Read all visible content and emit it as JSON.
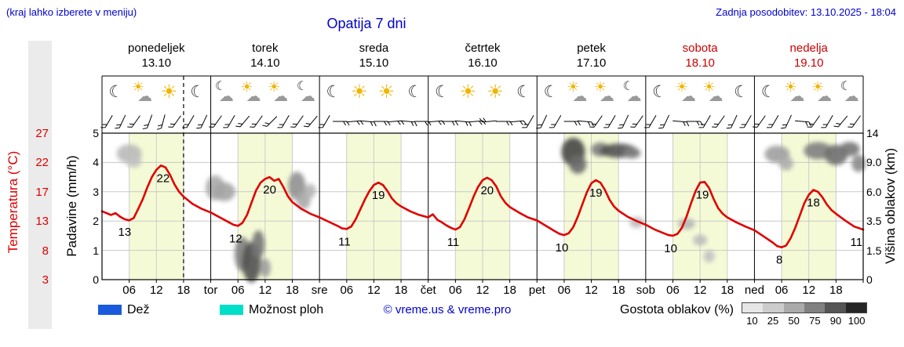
{
  "header": {
    "hint": "(kraj lahko izberete v meniju)",
    "title": "Opatija 7 dni",
    "last_update": "Zadnja posodobitev: 13.10.2025 - 18:04"
  },
  "colors": {
    "accent_blue": "#0000cc",
    "temp_red": "#e00000",
    "weekend_red": "#cc0000",
    "day_band": "#f5fad6",
    "rain_blue": "#1a5adc",
    "showers_cyan": "#00dfc8"
  },
  "days": [
    {
      "name": "ponedeljek",
      "date": "13.10",
      "weekend": false
    },
    {
      "name": "torek",
      "date": "14.10",
      "weekend": false
    },
    {
      "name": "sreda",
      "date": "15.10",
      "weekend": false
    },
    {
      "name": "četrtek",
      "date": "16.10",
      "weekend": false
    },
    {
      "name": "petek",
      "date": "17.10",
      "weekend": false
    },
    {
      "name": "sobota",
      "date": "18.10",
      "weekend": true
    },
    {
      "name": "nedelja",
      "date": "19.10",
      "weekend": true
    }
  ],
  "chart_data": {
    "type": "line",
    "title": "Opatija 7 dni",
    "x_range_hours": [
      0,
      168
    ],
    "temp_axis": {
      "label": "Temperatura (°C)",
      "ticks": [
        27,
        22,
        17,
        13,
        8,
        3
      ],
      "range": [
        3,
        27
      ]
    },
    "precip_axis": {
      "label": "Padavine (mm/h)",
      "ticks": [
        5,
        4,
        3,
        2,
        1,
        0
      ],
      "range": [
        0,
        5
      ]
    },
    "cloud_axis": {
      "label": "Višina oblakov (km)",
      "ticks": [
        "14",
        "9.0",
        "6.0",
        "3.5",
        "1.5",
        "0"
      ],
      "tick_km": [
        14,
        9,
        6,
        3.5,
        1.5,
        0
      ]
    },
    "x_ticks": [
      {
        "h": 6,
        "label": "06"
      },
      {
        "h": 12,
        "label": "12"
      },
      {
        "h": 18,
        "label": "18"
      },
      {
        "h": 24,
        "label": "tor"
      },
      {
        "h": 30,
        "label": "06"
      },
      {
        "h": 36,
        "label": "12"
      },
      {
        "h": 42,
        "label": "18"
      },
      {
        "h": 48,
        "label": "sre"
      },
      {
        "h": 54,
        "label": "06"
      },
      {
        "h": 60,
        "label": "12"
      },
      {
        "h": 66,
        "label": "18"
      },
      {
        "h": 72,
        "label": "čet"
      },
      {
        "h": 78,
        "label": "06"
      },
      {
        "h": 84,
        "label": "12"
      },
      {
        "h": 90,
        "label": "18"
      },
      {
        "h": 96,
        "label": "pet"
      },
      {
        "h": 102,
        "label": "06"
      },
      {
        "h": 108,
        "label": "12"
      },
      {
        "h": 114,
        "label": "18"
      },
      {
        "h": 120,
        "label": "sob"
      },
      {
        "h": 126,
        "label": "06"
      },
      {
        "h": 132,
        "label": "12"
      },
      {
        "h": 138,
        "label": "18"
      },
      {
        "h": 144,
        "label": "ned"
      },
      {
        "h": 150,
        "label": "06"
      },
      {
        "h": 156,
        "label": "12"
      },
      {
        "h": 162,
        "label": "18"
      }
    ],
    "day_bands": {
      "start_hour": 6,
      "end_hour": 18
    },
    "now_line_hour": 18,
    "series": [
      {
        "name": "Temperatura",
        "color": "#e00000",
        "points": [
          [
            0,
            14.2
          ],
          [
            2,
            13.6
          ],
          [
            3,
            13.9
          ],
          [
            4,
            13.3
          ],
          [
            5,
            12.9
          ],
          [
            6,
            12.7
          ],
          [
            7,
            13.1
          ],
          [
            8,
            14.6
          ],
          [
            9,
            16.2
          ],
          [
            10,
            18.1
          ],
          [
            11,
            19.8
          ],
          [
            12,
            21.0
          ],
          [
            13,
            21.7
          ],
          [
            14,
            21.4
          ],
          [
            15,
            20.2
          ],
          [
            16,
            18.6
          ],
          [
            17,
            17.4
          ],
          [
            18,
            16.6
          ],
          [
            19,
            16.0
          ],
          [
            20,
            15.4
          ],
          [
            22,
            14.6
          ],
          [
            24,
            14.0
          ],
          [
            26,
            13.2
          ],
          [
            28,
            12.4
          ],
          [
            29,
            12.0
          ],
          [
            30,
            11.8
          ],
          [
            31,
            12.3
          ],
          [
            32,
            13.6
          ],
          [
            33,
            15.6
          ],
          [
            34,
            17.6
          ],
          [
            35,
            18.9
          ],
          [
            36,
            19.5
          ],
          [
            37,
            19.8
          ],
          [
            38,
            19.2
          ],
          [
            39,
            19.5
          ],
          [
            40,
            18.2
          ],
          [
            41,
            16.7
          ],
          [
            42,
            15.7
          ],
          [
            44,
            14.6
          ],
          [
            46,
            13.8
          ],
          [
            48,
            13.2
          ],
          [
            50,
            12.5
          ],
          [
            52,
            11.8
          ],
          [
            53,
            11.4
          ],
          [
            54,
            11.3
          ],
          [
            55,
            11.7
          ],
          [
            56,
            12.9
          ],
          [
            57,
            14.5
          ],
          [
            58,
            16.1
          ],
          [
            59,
            17.5
          ],
          [
            60,
            18.5
          ],
          [
            61,
            18.9
          ],
          [
            62,
            18.5
          ],
          [
            63,
            17.5
          ],
          [
            64,
            16.3
          ],
          [
            65,
            15.5
          ],
          [
            66,
            15.0
          ],
          [
            68,
            14.2
          ],
          [
            70,
            13.6
          ],
          [
            72,
            13.2
          ],
          [
            73,
            13.7
          ],
          [
            74,
            12.8
          ],
          [
            75,
            12.4
          ],
          [
            76,
            11.9
          ],
          [
            77,
            11.5
          ],
          [
            78,
            11.2
          ],
          [
            79,
            11.6
          ],
          [
            80,
            12.9
          ],
          [
            81,
            14.7
          ],
          [
            82,
            16.6
          ],
          [
            83,
            18.2
          ],
          [
            84,
            19.3
          ],
          [
            85,
            19.7
          ],
          [
            86,
            19.3
          ],
          [
            87,
            18.3
          ],
          [
            88,
            16.7
          ],
          [
            89,
            15.6
          ],
          [
            90,
            14.9
          ],
          [
            92,
            14.0
          ],
          [
            94,
            13.2
          ],
          [
            96,
            12.7
          ],
          [
            98,
            11.8
          ],
          [
            100,
            10.9
          ],
          [
            101,
            10.5
          ],
          [
            102,
            10.3
          ],
          [
            103,
            10.6
          ],
          [
            104,
            11.6
          ],
          [
            105,
            13.3
          ],
          [
            106,
            15.3
          ],
          [
            107,
            17.3
          ],
          [
            108,
            18.8
          ],
          [
            109,
            19.3
          ],
          [
            110,
            18.9
          ],
          [
            111,
            17.7
          ],
          [
            112,
            16.1
          ],
          [
            113,
            15.0
          ],
          [
            114,
            14.3
          ],
          [
            116,
            13.3
          ],
          [
            118,
            12.6
          ],
          [
            120,
            12.0
          ],
          [
            122,
            11.2
          ],
          [
            124,
            10.6
          ],
          [
            125,
            10.3
          ],
          [
            126,
            10.2
          ],
          [
            127,
            10.5
          ],
          [
            128,
            11.5
          ],
          [
            129,
            13.3
          ],
          [
            130,
            15.5
          ],
          [
            131,
            17.5
          ],
          [
            132,
            18.9
          ],
          [
            133,
            19.0
          ],
          [
            134,
            18.0
          ],
          [
            135,
            16.2
          ],
          [
            136,
            14.7
          ],
          [
            137,
            13.8
          ],
          [
            138,
            13.2
          ],
          [
            140,
            12.4
          ],
          [
            142,
            11.7
          ],
          [
            144,
            11.1
          ],
          [
            146,
            10.1
          ],
          [
            148,
            9.1
          ],
          [
            149,
            8.5
          ],
          [
            150,
            8.3
          ],
          [
            151,
            8.6
          ],
          [
            152,
            9.8
          ],
          [
            153,
            11.5
          ],
          [
            154,
            13.5
          ],
          [
            155,
            15.5
          ],
          [
            156,
            16.9
          ],
          [
            157,
            17.7
          ],
          [
            158,
            17.4
          ],
          [
            159,
            16.5
          ],
          [
            160,
            15.3
          ],
          [
            161,
            14.4
          ],
          [
            162,
            13.8
          ],
          [
            164,
            12.7
          ],
          [
            166,
            11.7
          ],
          [
            168,
            11.2
          ]
        ]
      }
    ],
    "point_labels": [
      {
        "h": 5,
        "T": 12.9,
        "label": "13"
      },
      {
        "h": 13.5,
        "T": 21.7,
        "label": "22"
      },
      {
        "h": 29.5,
        "T": 11.8,
        "label": "12"
      },
      {
        "h": 37,
        "T": 19.8,
        "label": "20"
      },
      {
        "h": 53.5,
        "T": 11.3,
        "label": "11"
      },
      {
        "h": 61,
        "T": 18.9,
        "label": "19"
      },
      {
        "h": 77.5,
        "T": 11.2,
        "label": "11"
      },
      {
        "h": 85,
        "T": 19.7,
        "label": "20"
      },
      {
        "h": 101.5,
        "T": 10.3,
        "label": "10"
      },
      {
        "h": 109,
        "T": 19.3,
        "label": "19"
      },
      {
        "h": 125.5,
        "T": 10.2,
        "label": "10"
      },
      {
        "h": 132.5,
        "T": 19.0,
        "label": "19"
      },
      {
        "h": 149.5,
        "T": 8.3,
        "label": "8"
      },
      {
        "h": 157,
        "T": 17.7,
        "label": "18"
      },
      {
        "h": 166.5,
        "T": 11.2,
        "label": "11"
      }
    ],
    "clouds_h_km_rx_ry_density": [
      [
        6,
        10.5,
        16,
        12,
        0.22
      ],
      [
        7,
        9.2,
        10,
        8,
        0.18
      ],
      [
        25,
        6.4,
        12,
        16,
        0.3
      ],
      [
        27,
        6.0,
        14,
        12,
        0.32
      ],
      [
        31,
        1.3,
        10,
        22,
        0.5
      ],
      [
        33,
        0.9,
        12,
        26,
        0.72
      ],
      [
        34.5,
        1.9,
        8,
        18,
        0.55
      ],
      [
        36,
        0.6,
        7,
        12,
        0.35
      ],
      [
        43,
        6.6,
        11,
        18,
        0.42
      ],
      [
        44.5,
        5.3,
        9,
        12,
        0.3
      ],
      [
        46,
        6.1,
        7,
        9,
        0.24
      ],
      [
        104,
        10.8,
        15,
        18,
        0.78
      ],
      [
        105,
        8.8,
        11,
        12,
        0.6
      ],
      [
        110,
        11.2,
        12,
        9,
        0.5
      ],
      [
        114,
        11.0,
        24,
        9,
        0.72
      ],
      [
        117,
        10.6,
        11,
        7,
        0.5
      ],
      [
        118,
        3.4,
        9,
        7,
        0.22
      ],
      [
        129,
        3.3,
        11,
        7,
        0.24
      ],
      [
        132,
        2.2,
        9,
        7,
        0.2
      ],
      [
        134,
        1.2,
        7,
        8,
        0.18
      ],
      [
        149,
        10.4,
        16,
        11,
        0.35
      ],
      [
        151,
        8.9,
        9,
        9,
        0.28
      ],
      [
        158,
        11.0,
        18,
        11,
        0.5
      ],
      [
        162,
        10.3,
        15,
        13,
        0.58
      ],
      [
        165,
        11.3,
        13,
        9,
        0.55
      ],
      [
        167,
        8.9,
        9,
        11,
        0.45
      ]
    ],
    "weather_icons": [
      "moon",
      "sun-cloud",
      "sun",
      "moon",
      "moon-cloud",
      "sun-cloud",
      "sun-cloud",
      "moon-cloud",
      "moon",
      "sun",
      "sun",
      "moon",
      "moon",
      "sun",
      "sun",
      "moon",
      "moon",
      "sun-cloud",
      "sun-cloud",
      "moon-cloud",
      "moon",
      "sun-cloud",
      "sun-cloud",
      "moon",
      "moon",
      "sun-cloud",
      "sun-cloud",
      "moon-cloud"
    ],
    "wind_barb_angles": [
      210,
      205,
      215,
      200,
      195,
      215,
      210,
      205,
      215,
      210,
      220,
      215,
      225,
      210,
      215,
      220,
      210,
      90,
      85,
      95,
      90,
      85,
      95,
      90,
      85,
      90,
      95,
      85,
      265,
      90,
      85,
      210,
      205,
      210,
      90,
      95,
      215,
      210,
      205,
      215,
      210,
      205,
      95,
      90,
      210,
      215,
      205,
      210,
      215,
      210,
      205,
      95,
      215,
      210,
      220,
      215
    ]
  },
  "legend": {
    "rain_label": "Dež",
    "showers_label": "Možnost ploh",
    "copyright": "© vreme.us & vreme.pro",
    "cloud_density_label": "Gostota oblakov (%)",
    "cloud_density_ticks": [
      "10",
      "25",
      "50",
      "75",
      "90",
      "100"
    ],
    "cloud_density_colors": [
      "#e6e6e6",
      "#cccccc",
      "#aaaaaa",
      "#808080",
      "#555555",
      "#262626"
    ]
  }
}
